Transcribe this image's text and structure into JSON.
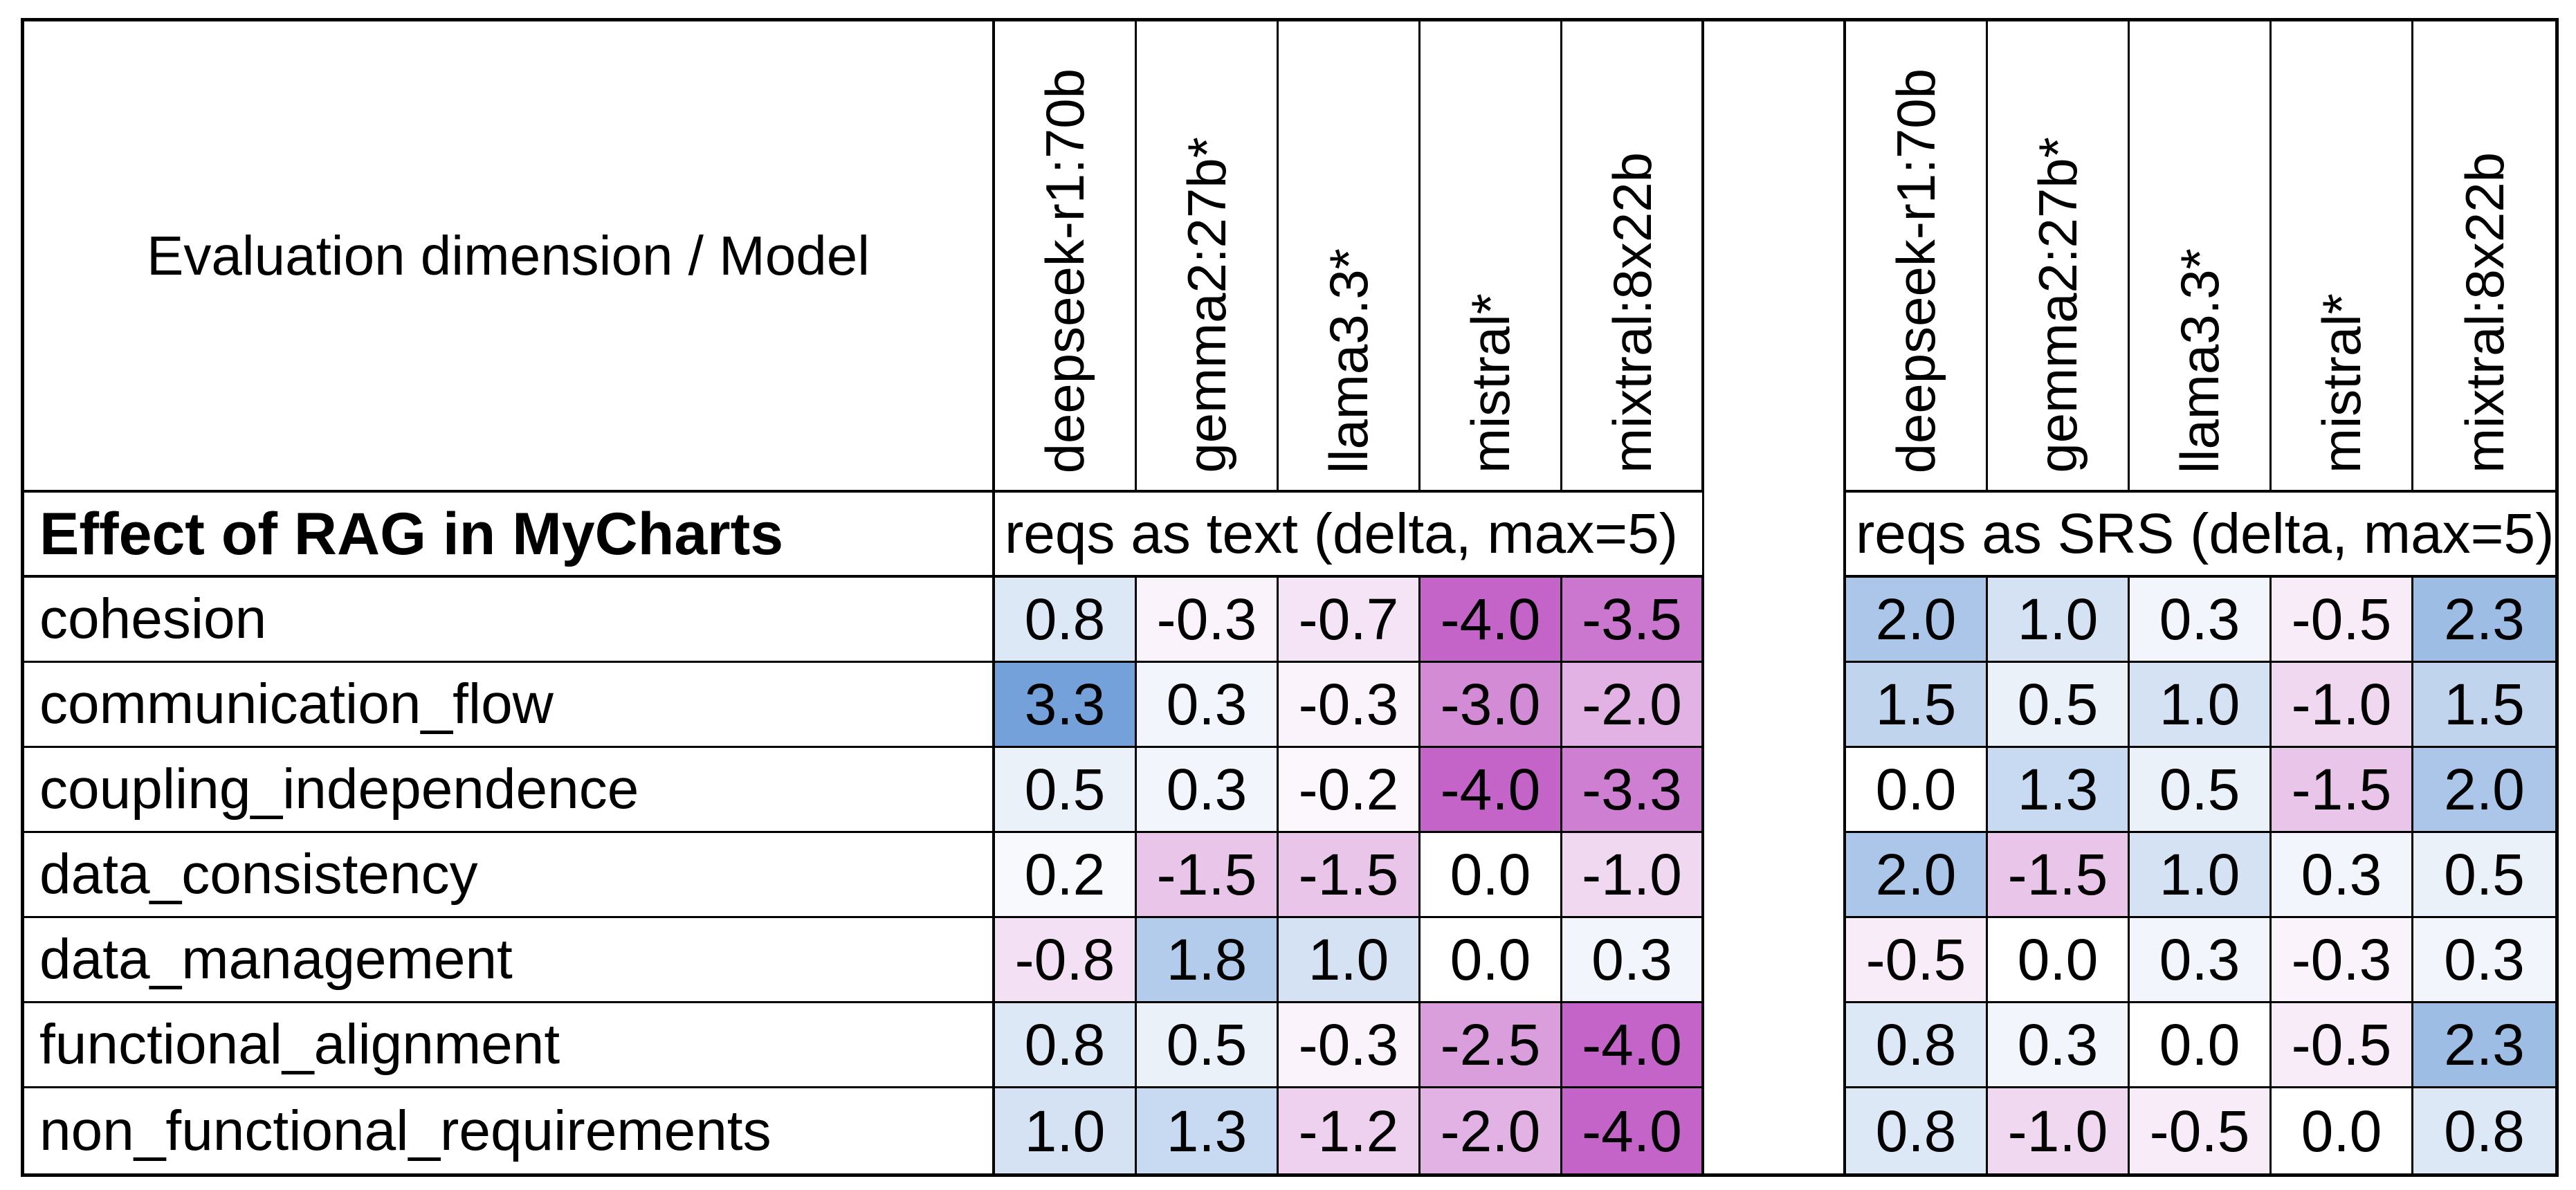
{
  "header": {
    "corner_label": "Evaluation dimension / Model"
  },
  "models": [
    "deepseek-r1:70b",
    "gemma2:27b*",
    "llama3.3*",
    "mistral*",
    "mixtral:8x22b"
  ],
  "section_row": {
    "label": "Effect of RAG in MyCharts",
    "group_headers": [
      "reqs as text (delta, max=5)",
      "reqs as SRS (delta, max=5)"
    ]
  },
  "rows": [
    {
      "label": "cohesion",
      "text_values": [
        0.8,
        -0.3,
        -0.7,
        -4.0,
        -3.5
      ],
      "srs_values": [
        2.0,
        1.0,
        0.3,
        -0.5,
        2.3
      ]
    },
    {
      "label": "communication_flow",
      "text_values": [
        3.3,
        0.3,
        -0.3,
        -3.0,
        -2.0
      ],
      "srs_values": [
        1.5,
        0.5,
        1.0,
        -1.0,
        1.5
      ]
    },
    {
      "label": "coupling_independence",
      "text_values": [
        0.5,
        0.3,
        -0.2,
        -4.0,
        -3.3
      ],
      "srs_values": [
        0.0,
        1.3,
        0.5,
        -1.5,
        2.0
      ]
    },
    {
      "label": "data_consistency",
      "text_values": [
        0.2,
        -1.5,
        -1.5,
        0.0,
        -1.0
      ],
      "srs_values": [
        2.0,
        -1.5,
        1.0,
        0.3,
        0.5
      ]
    },
    {
      "label": "data_management",
      "text_values": [
        -0.8,
        1.8,
        1.0,
        0.0,
        0.3
      ],
      "srs_values": [
        -0.5,
        0.0,
        0.3,
        -0.3,
        0.3
      ]
    },
    {
      "label": "functional_alignment",
      "text_values": [
        0.8,
        0.5,
        -0.3,
        -2.5,
        -4.0
      ],
      "srs_values": [
        0.8,
        0.3,
        0.0,
        -0.5,
        2.3
      ]
    },
    {
      "label": "non_functional_requirements",
      "text_values": [
        1.0,
        1.3,
        -1.2,
        -2.0,
        -4.0
      ],
      "srs_values": [
        0.8,
        -1.0,
        -0.5,
        0.0,
        0.8
      ]
    }
  ],
  "heatmap": {
    "positive_color": "#6C9BD8",
    "negative_color": "#C464C8",
    "zero_color": "#FFFFFF",
    "positive_limit": 3.5,
    "negative_limit": 4.0
  },
  "chart_data": {
    "type": "heatmap",
    "title": "Effect of RAG in MyCharts",
    "row_label_header": "Evaluation dimension / Model",
    "rows": [
      "cohesion",
      "communication_flow",
      "coupling_independence",
      "data_consistency",
      "data_management",
      "functional_alignment",
      "non_functional_requirements"
    ],
    "columns": [
      "deepseek-r1:70b",
      "gemma2:27b*",
      "llama3.3*",
      "mistral*",
      "mixtral:8x22b"
    ],
    "column_groups": [
      {
        "header": "reqs as text (delta, max=5)",
        "values": [
          [
            0.8,
            -0.3,
            -0.7,
            -4.0,
            -3.5
          ],
          [
            3.3,
            0.3,
            -0.3,
            -3.0,
            -2.0
          ],
          [
            0.5,
            0.3,
            -0.2,
            -4.0,
            -3.3
          ],
          [
            0.2,
            -1.5,
            -1.5,
            0.0,
            -1.0
          ],
          [
            -0.8,
            1.8,
            1.0,
            0.0,
            0.3
          ],
          [
            0.8,
            0.5,
            -0.3,
            -2.5,
            -4.0
          ],
          [
            1.0,
            1.3,
            -1.2,
            -2.0,
            -4.0
          ]
        ]
      },
      {
        "header": "reqs as SRS (delta, max=5)",
        "values": [
          [
            2.0,
            1.0,
            0.3,
            -0.5,
            2.3
          ],
          [
            1.5,
            0.5,
            1.0,
            -1.0,
            1.5
          ],
          [
            0.0,
            1.3,
            0.5,
            -1.5,
            2.0
          ],
          [
            2.0,
            -1.5,
            1.0,
            0.3,
            0.5
          ],
          [
            -0.5,
            0.0,
            0.3,
            -0.3,
            0.3
          ],
          [
            0.8,
            0.3,
            0.0,
            -0.5,
            2.3
          ],
          [
            0.8,
            -1.0,
            -0.5,
            0.0,
            0.8
          ]
        ]
      }
    ],
    "value_range": [
      -4.0,
      3.3
    ],
    "color_scale": {
      "negative": "#C464C8",
      "zero": "#FFFFFF",
      "positive": "#6C9BD8"
    },
    "grid": true,
    "legend": false
  }
}
